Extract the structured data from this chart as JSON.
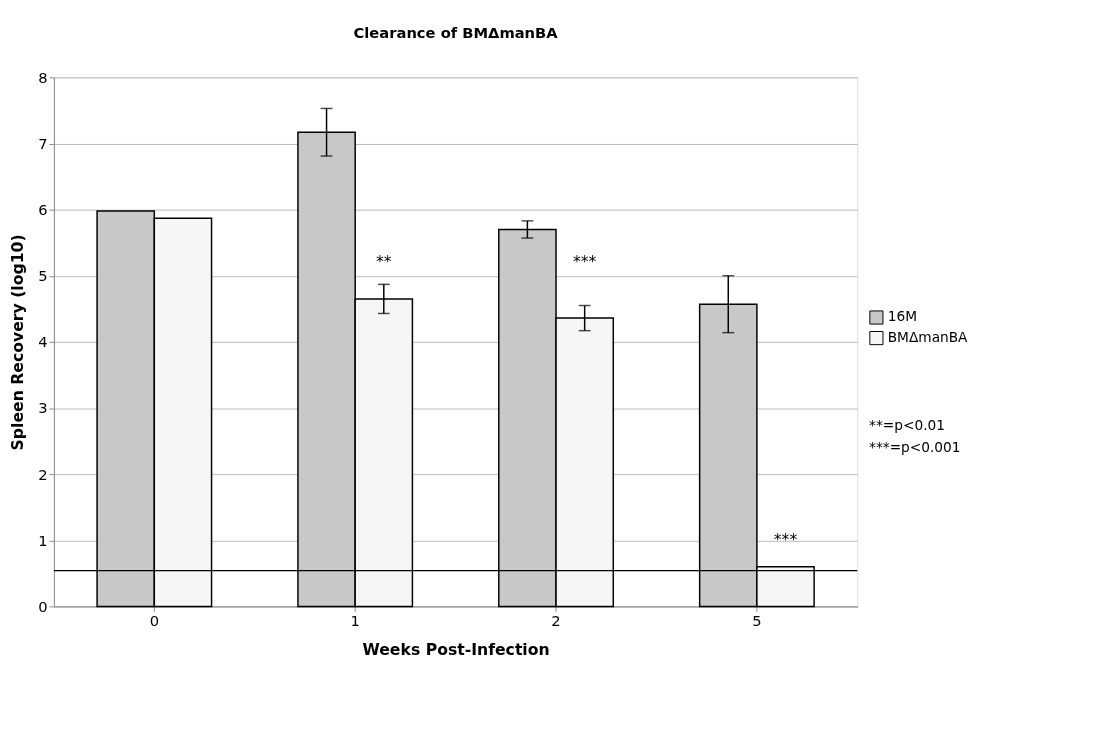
{
  "chart_data": {
    "type": "bar",
    "title": "Clearance of BMΔmanBA",
    "xlabel": "Weeks Post-Infection",
    "ylabel": "Spleen Recovery (log10)",
    "categories": [
      "0",
      "1",
      "2",
      "5"
    ],
    "series": [
      {
        "name": "16M",
        "color": "#c8c8c8",
        "values": [
          5.98,
          7.17,
          5.7,
          4.57
        ],
        "errors": [
          null,
          0.36,
          0.13,
          0.43
        ]
      },
      {
        "name": "BMΔmanBA",
        "color": "#f6f6f6",
        "values": [
          5.87,
          4.65,
          4.36,
          0.6
        ],
        "errors": [
          null,
          0.22,
          0.19,
          null
        ]
      }
    ],
    "ylim": [
      0,
      8
    ],
    "yticks": [
      0,
      1,
      2,
      3,
      4,
      5,
      6,
      7,
      8
    ],
    "grid": "y",
    "legend": "right",
    "ref_lines": [
      {
        "axis": "y",
        "value": 0.54,
        "color": "#000000"
      }
    ],
    "annotations": [
      {
        "text": "**",
        "x": "1",
        "y": 5.2
      },
      {
        "text": "***",
        "x": "2",
        "y": 5.2
      },
      {
        "text": "***",
        "x": "5",
        "y": 1.0
      },
      "**=p<0.01",
      "***=p<0.001"
    ]
  }
}
